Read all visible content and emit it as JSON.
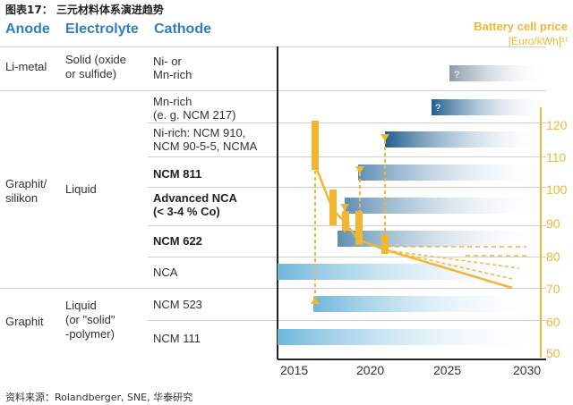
{
  "caption": "图表17： 三元材料体系演进趋势",
  "headers": {
    "anode": "Anode",
    "electrolyte": "Electrolyte",
    "cathode": "Cathode"
  },
  "price_axis": {
    "title": "Battery cell price",
    "unit": "[Euro/kWh]¹⁾",
    "ticks": [
      "120",
      "110",
      "100",
      "90",
      "80",
      "70",
      "60",
      "50"
    ]
  },
  "year_axis": {
    "ticks": [
      "2015",
      "2020",
      "2025",
      "2030"
    ]
  },
  "groups": [
    {
      "anode": "Li-metal",
      "electrolyte": "Solid (oxide\nor sulfide)"
    },
    {
      "anode": "Graphit/\nsilikon",
      "electrolyte": "Liquid"
    },
    {
      "anode": "Graphit",
      "electrolyte": "Liquid\n(or \"solid\"\n-polymer)"
    }
  ],
  "cathodes": [
    {
      "label": "Ni- or\nMn-rich",
      "bold": false,
      "bar_label": "?"
    },
    {
      "label": "Mn-rich\n(e. g. NCM 217)",
      "bold": false,
      "bar_label": "?"
    },
    {
      "label": "Ni-rich: NCM 910,\nNCM 90-5-5, NCMA",
      "bold": false,
      "bar_label": ""
    },
    {
      "label": "NCM 811",
      "bold": true,
      "bar_label": ""
    },
    {
      "label": "Advanced NCA\n(< 3-4 % Co)",
      "bold": false,
      "bar_label": ""
    },
    {
      "label": "NCM 622",
      "bold": true,
      "bar_label": ""
    },
    {
      "label": "NCA",
      "bold": false,
      "bar_label": ""
    },
    {
      "label": "NCM 523",
      "bold": false,
      "bar_label": ""
    },
    {
      "label": "NCM 111",
      "bold": false,
      "bar_label": ""
    }
  ],
  "source": "资料来源：Rolandberger, SNE, 华泰研究",
  "colors": {
    "header": "#2f7fbf",
    "price": "#f2b632",
    "bar_dark": "#1f5f8f",
    "bar_light": "#7ec0e0",
    "bar_gray": "#8a9aa8"
  }
}
